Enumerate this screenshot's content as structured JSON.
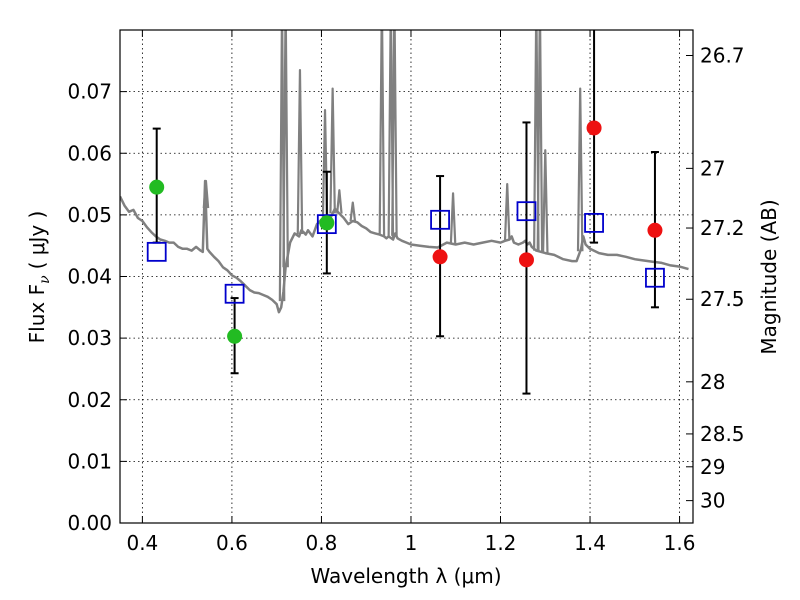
{
  "chart_data": {
    "type": "scatter",
    "xlabel": "Wavelength  λ (μm)",
    "ylabel": "Flux  F",
    "ylabel_sub": "ν",
    "ylabel_unit": "( μJy )",
    "y2label": "Magnitude (AB)",
    "xlim": [
      0.35,
      1.63
    ],
    "ylim": [
      0.0,
      0.08
    ],
    "grid": true,
    "x_ticks": [
      {
        "v": 0.4,
        "label": "0.4"
      },
      {
        "v": 0.6,
        "label": "0.6"
      },
      {
        "v": 0.8,
        "label": "0.8"
      },
      {
        "v": 1.0,
        "label": "1"
      },
      {
        "v": 1.2,
        "label": "1.2"
      },
      {
        "v": 1.4,
        "label": "1.4"
      },
      {
        "v": 1.6,
        "label": "1.6"
      }
    ],
    "y_ticks": [
      {
        "v": 0.0,
        "label": "0.00"
      },
      {
        "v": 0.01,
        "label": "0.01"
      },
      {
        "v": 0.02,
        "label": "0.02"
      },
      {
        "v": 0.03,
        "label": "0.03"
      },
      {
        "v": 0.04,
        "label": "0.04"
      },
      {
        "v": 0.05,
        "label": "0.05"
      },
      {
        "v": 0.06,
        "label": "0.06"
      },
      {
        "v": 0.07,
        "label": "0.07"
      }
    ],
    "mag_ticks": [
      {
        "v": 26.7,
        "label": "26.7"
      },
      {
        "v": 27.0,
        "label": "27"
      },
      {
        "v": 27.2,
        "label": "27.2"
      },
      {
        "v": 27.5,
        "label": "27.5"
      },
      {
        "v": 28.0,
        "label": "28"
      },
      {
        "v": 28.5,
        "label": "28.5"
      },
      {
        "v": 29.0,
        "label": "29"
      },
      {
        "v": 30.0,
        "label": "30"
      }
    ],
    "colors": {
      "model": "#808080",
      "green": "#22bb22",
      "red": "#ee1111",
      "blue_square": "#0000cc",
      "errorbar": "#000000"
    },
    "model_sed": {
      "x": [
        0.35,
        0.36,
        0.37,
        0.38,
        0.39,
        0.4,
        0.41,
        0.42,
        0.43,
        0.44,
        0.45,
        0.46,
        0.47,
        0.48,
        0.49,
        0.5,
        0.51,
        0.52,
        0.53,
        0.535,
        0.54,
        0.545,
        0.55,
        0.56,
        0.57,
        0.58,
        0.59,
        0.6,
        0.61,
        0.62,
        0.63,
        0.64,
        0.65,
        0.66,
        0.67,
        0.68,
        0.69,
        0.7,
        0.705,
        0.71,
        0.715,
        0.72,
        0.73,
        0.74,
        0.75,
        0.755,
        0.76,
        0.765,
        0.77,
        0.78,
        0.79,
        0.8,
        0.81,
        0.82,
        0.83,
        0.84,
        0.85,
        0.86,
        0.87,
        0.88,
        0.89,
        0.9,
        0.91,
        0.92,
        0.93,
        0.94,
        0.945,
        0.95,
        0.96,
        0.965,
        0.97,
        0.98,
        0.99,
        1.0,
        1.02,
        1.04,
        1.06,
        1.08,
        1.1,
        1.12,
        1.14,
        1.16,
        1.18,
        1.2,
        1.21,
        1.22,
        1.225,
        1.23,
        1.24,
        1.25,
        1.255,
        1.26,
        1.265,
        1.27,
        1.28,
        1.3,
        1.32,
        1.34,
        1.36,
        1.37,
        1.38,
        1.385,
        1.39,
        1.4,
        1.42,
        1.44,
        1.46,
        1.48,
        1.5,
        1.52,
        1.54,
        1.56,
        1.58,
        1.6,
        1.62
      ],
      "y": [
        0.053,
        0.0515,
        0.0505,
        0.0508,
        0.0495,
        0.049,
        0.048,
        0.0472,
        0.0465,
        0.046,
        0.0458,
        0.0455,
        0.0455,
        0.0448,
        0.0445,
        0.0445,
        0.0442,
        0.0448,
        0.0442,
        0.044,
        0.0555,
        0.0445,
        0.044,
        0.0432,
        0.0425,
        0.0415,
        0.041,
        0.0402,
        0.0398,
        0.0392,
        0.0385,
        0.0378,
        0.0374,
        0.0373,
        0.037,
        0.0367,
        0.0362,
        0.0355,
        0.0342,
        0.035,
        0.0375,
        0.0415,
        0.0455,
        0.047,
        0.0465,
        0.0475,
        0.0472,
        0.0468,
        0.0475,
        0.0465,
        0.0485,
        0.0492,
        0.0485,
        0.0495,
        0.051,
        0.0502,
        0.0495,
        0.0485,
        0.049,
        0.0488,
        0.0482,
        0.0478,
        0.0472,
        0.047,
        0.0468,
        0.0465,
        0.0462,
        0.0465,
        0.046,
        0.047,
        0.0462,
        0.0458,
        0.0455,
        0.0452,
        0.045,
        0.0448,
        0.0447,
        0.0455,
        0.0452,
        0.0455,
        0.0452,
        0.0455,
        0.0458,
        0.0455,
        0.0458,
        0.046,
        0.0465,
        0.0455,
        0.0452,
        0.0455,
        0.0458,
        0.0452,
        0.0455,
        0.0448,
        0.0442,
        0.0438,
        0.0435,
        0.0428,
        0.0425,
        0.0425,
        0.0445,
        0.0465,
        0.0452,
        0.0445,
        0.0438,
        0.0435,
        0.0435,
        0.0432,
        0.0428,
        0.0426,
        0.0424,
        0.0422,
        0.0418,
        0.0416,
        0.0412
      ]
    },
    "model_lines": [
      {
        "x": 0.542,
        "top": 0.0555
      },
      {
        "x": 0.712,
        "top": 0.085
      },
      {
        "x": 0.72,
        "top": 0.085
      },
      {
        "x": 0.752,
        "top": 0.0735
      },
      {
        "x": 0.808,
        "top": 0.067
      },
      {
        "x": 0.825,
        "top": 0.0705
      },
      {
        "x": 0.84,
        "top": 0.054
      },
      {
        "x": 0.87,
        "top": 0.052
      },
      {
        "x": 0.935,
        "top": 0.085
      },
      {
        "x": 0.955,
        "top": 0.085
      },
      {
        "x": 0.963,
        "top": 0.085
      },
      {
        "x": 1.094,
        "top": 0.0535
      },
      {
        "x": 1.215,
        "top": 0.055
      },
      {
        "x": 1.28,
        "top": 0.085
      },
      {
        "x": 1.288,
        "top": 0.085
      },
      {
        "x": 1.3,
        "top": 0.0605
      },
      {
        "x": 1.378,
        "top": 0.0705
      }
    ],
    "points_green": [
      {
        "x": 0.432,
        "y": 0.0545,
        "lo": 0.0455,
        "hi": 0.064
      },
      {
        "x": 0.606,
        "y": 0.0303,
        "lo": 0.0243,
        "hi": 0.0365
      },
      {
        "x": 0.812,
        "y": 0.0487,
        "lo": 0.0405,
        "hi": 0.057
      }
    ],
    "points_red": [
      {
        "x": 1.065,
        "y": 0.0432,
        "lo": 0.0303,
        "hi": 0.0563
      },
      {
        "x": 1.258,
        "y": 0.0427,
        "lo": 0.021,
        "hi": 0.065
      },
      {
        "x": 1.409,
        "y": 0.0641,
        "lo": 0.0455,
        "hi": 0.083
      },
      {
        "x": 1.545,
        "y": 0.0475,
        "lo": 0.035,
        "hi": 0.0602
      }
    ],
    "points_blue_square": [
      {
        "x": 0.432,
        "y": 0.044
      },
      {
        "x": 0.606,
        "y": 0.0372
      },
      {
        "x": 0.812,
        "y": 0.0485
      },
      {
        "x": 1.065,
        "y": 0.0492
      },
      {
        "x": 1.258,
        "y": 0.0506
      },
      {
        "x": 1.409,
        "y": 0.0487
      },
      {
        "x": 1.545,
        "y": 0.0398
      }
    ]
  }
}
